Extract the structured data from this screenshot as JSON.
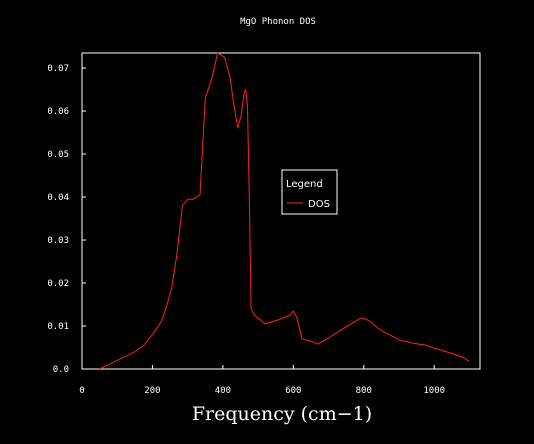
{
  "chart_data": {
    "type": "line",
    "title": "MgO Phonon DOS",
    "xlabel": "Frequency (cm−1)",
    "ylabel": "",
    "xlim": [
      0,
      1130
    ],
    "ylim": [
      0,
      0.0735
    ],
    "xticks": [
      0,
      200,
      400,
      600,
      800,
      1000
    ],
    "xtick_labels": [
      "0",
      "200",
      "400",
      "600",
      "800",
      "1000"
    ],
    "yticks": [
      0,
      0.01,
      0.02,
      0.03,
      0.04,
      0.05,
      0.06,
      0.07
    ],
    "ytick_labels": [
      "0.0",
      "0.01",
      "0.02",
      "0.03",
      "0.04",
      "0.05",
      "0.06",
      "0.07"
    ],
    "grid": false,
    "legend": {
      "title": "Legend",
      "placement": "center-right"
    },
    "series": [
      {
        "name": "DOS",
        "color": "#ff2020",
        "x": [
          50,
          100,
          150,
          175,
          200,
          225,
          240,
          255,
          270,
          285,
          300,
          315,
          335,
          350,
          360,
          370,
          385,
          395,
          405,
          420,
          432,
          442,
          452,
          460,
          465,
          470,
          475,
          480,
          490,
          520,
          560,
          590,
          600,
          610,
          625,
          650,
          670,
          700,
          730,
          760,
          790,
          800,
          820,
          840,
          860,
          900,
          940,
          980,
          1000,
          1020,
          1050,
          1080,
          1100
        ],
        "y": [
          0.0,
          0.002,
          0.004,
          0.0055,
          0.008,
          0.011,
          0.0145,
          0.019,
          0.027,
          0.038,
          0.0395,
          0.0395,
          0.0405,
          0.063,
          0.0655,
          0.068,
          0.0735,
          0.073,
          0.0725,
          0.068,
          0.061,
          0.056,
          0.059,
          0.064,
          0.065,
          0.061,
          0.04,
          0.014,
          0.0125,
          0.0105,
          0.0115,
          0.0125,
          0.0135,
          0.012,
          0.007,
          0.0065,
          0.0058,
          0.0072,
          0.0088,
          0.0103,
          0.0118,
          0.0118,
          0.011,
          0.0095,
          0.0085,
          0.0068,
          0.006,
          0.0055,
          0.0048,
          0.0044,
          0.0036,
          0.0028,
          0.0018
        ]
      }
    ]
  }
}
